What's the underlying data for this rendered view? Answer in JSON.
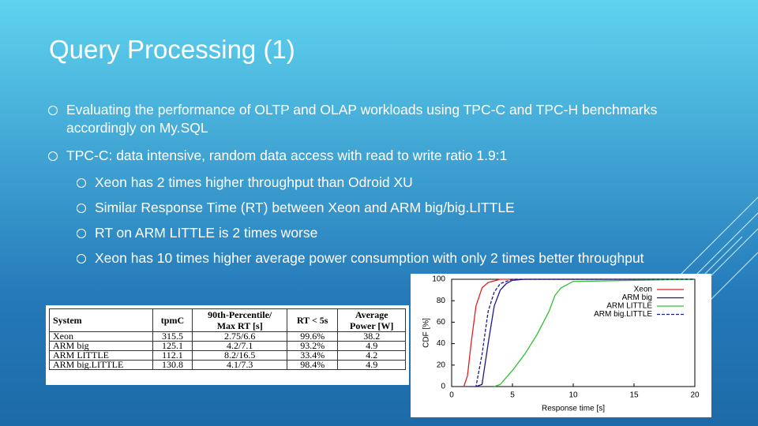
{
  "title": "Query Processing (1)",
  "bullets": [
    {
      "text": "Evaluating the performance of OLTP and OLAP workloads using TPC-C and TPC-H benchmarks accordingly on My.SQL",
      "level": 1
    },
    {
      "text": "TPC-C: data intensive, random data access with read to write ratio 1.9:1",
      "level": 1
    },
    {
      "text": "Xeon has 2 times higher throughput than Odroid XU",
      "level": 2
    },
    {
      "text": "Similar Response Time (RT) between Xeon and ARM big/big.LITTLE",
      "level": 2
    },
    {
      "text": "RT on ARM LITTLE is 2 times worse",
      "level": 2
    },
    {
      "text": "Xeon has 10 times higher average power consumption with only 2 times better throughput",
      "level": 2
    }
  ],
  "table": {
    "header": [
      [
        "System"
      ],
      [
        "tpmC"
      ],
      [
        "90th-Percentile/",
        "Max RT [s]"
      ],
      [
        "RT < 5s"
      ],
      [
        "Average",
        "Power [W]"
      ]
    ],
    "rows": [
      [
        "Xeon",
        "315.5",
        "2.75/6.6",
        "99.6%",
        "38.2"
      ],
      [
        "ARM big",
        "125.1",
        "4.2/7.1",
        "93.2%",
        "4.9"
      ],
      [
        "ARM LITTLE",
        "112.1",
        "8.2/16.5",
        "33.4%",
        "4.2"
      ],
      [
        "ARM big.LITTLE",
        "130.8",
        "4.1/7.3",
        "98.4%",
        "4.9"
      ]
    ]
  },
  "chart_data": {
    "type": "line",
    "x_label": "Response time [s]",
    "y_label": "CDF [%]",
    "xlim": [
      0,
      20
    ],
    "xticks": [
      0,
      5,
      10,
      15,
      20
    ],
    "ylim": [
      0,
      100
    ],
    "yticks": [
      0,
      20,
      40,
      60,
      80,
      100
    ],
    "legend": "top-right",
    "series": [
      {
        "name": "Xeon",
        "color": "#e02020",
        "dash": false,
        "x": [
          1,
          1.3,
          1.6,
          2,
          2.5,
          3,
          4,
          20
        ],
        "values": [
          0,
          10,
          40,
          75,
          92,
          97,
          100,
          100
        ]
      },
      {
        "name": "ARM big",
        "color": "#1a1a8c",
        "dash": false,
        "x": [
          2,
          2.5,
          3,
          3.5,
          4,
          4.5,
          5,
          6,
          20
        ],
        "values": [
          0,
          2,
          40,
          75,
          90,
          96,
          99,
          100,
          100
        ]
      },
      {
        "name": "ARM LITTLE",
        "color": "#30c030",
        "dash": false,
        "x": [
          3.5,
          4,
          5,
          6,
          7,
          8,
          8.5,
          9,
          10,
          20
        ],
        "values": [
          0,
          2,
          15,
          30,
          48,
          70,
          85,
          92,
          98,
          100
        ]
      },
      {
        "name": "ARM big.LITTLE",
        "color": "#1a1a8c",
        "dash": true,
        "x": [
          1.5,
          2,
          2.5,
          3,
          3.5,
          4,
          5,
          20
        ],
        "values": [
          0,
          0,
          30,
          70,
          88,
          96,
          100,
          100
        ]
      }
    ]
  }
}
